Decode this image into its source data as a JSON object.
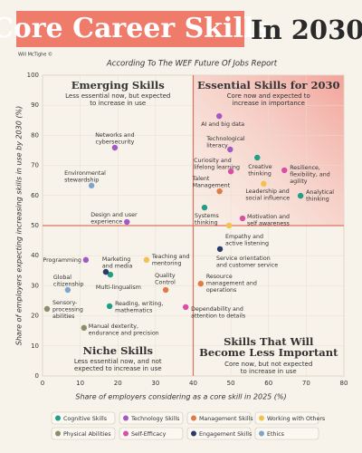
{
  "title": "Core Career Skills",
  "title_suffix": "In 2030",
  "credit": "Will McTighe ©",
  "subtitle": "According To The WEF Future Of Jobs Report",
  "chart_data": {
    "type": "scatter",
    "x_label": "Share of employers considering as a core skill in 2025 (%)",
    "y_label": "Share of employers expecting increasing skills in use by 2030 (%)",
    "xlim": [
      0,
      80
    ],
    "ylim": [
      0,
      100
    ],
    "xticks": [
      0,
      10,
      20,
      30,
      40,
      50,
      60,
      70,
      80
    ],
    "yticks": [
      0,
      10,
      20,
      30,
      40,
      50,
      60,
      70,
      80,
      90,
      100
    ],
    "dividers": {
      "x": 40,
      "y": 50
    },
    "quadrants": [
      {
        "title": "Emerging Skills",
        "description": [
          "Less essential now, but expected",
          "to increase in use"
        ]
      },
      {
        "title": "Essential Skills for 2030",
        "description": [
          "Core now and expected to",
          "increase in importance"
        ]
      },
      {
        "title": "Niche Skills",
        "description": [
          "Less essential now, and not",
          "expected to increase in use"
        ]
      },
      {
        "title": "Skills That Will Become Less Important",
        "description": [
          "Core now, but not expected",
          "to increase in use"
        ]
      }
    ],
    "series": [
      {
        "name": "Cognitive Skills",
        "color": "#1f9e89",
        "x": [
          57,
          68.5,
          43,
          17.8,
          18
        ],
        "values": [
          72.6,
          59.9,
          56,
          23.2,
          33.7
        ],
        "labels": [
          [
            "Creative",
            "thinking"
          ],
          [
            "Analytical",
            "thinking"
          ],
          [
            "Systems",
            "thinking"
          ],
          [
            "Reading, writing,",
            "mathematics"
          ],
          [
            "Multi-lingualism"
          ]
        ]
      },
      {
        "name": "Technology Skills",
        "color": "#a259c4",
        "x": [
          46.9,
          49.8,
          19.2,
          22.4,
          11.5
        ],
        "values": [
          86.4,
          75.3,
          75.9,
          51.2,
          38.6
        ],
        "labels": [
          [
            "AI and big data"
          ],
          [
            "Technological",
            "literacy"
          ],
          [
            "Networks and",
            "cybersecurity"
          ],
          [
            "Design and user",
            "experience"
          ],
          [
            "Programming"
          ]
        ]
      },
      {
        "name": "Management Skills",
        "color": "#e07b48",
        "x": [
          47,
          42,
          32.7
        ],
        "values": [
          61.4,
          30.7,
          28.6
        ],
        "labels": [
          [
            "Talent",
            "Management"
          ],
          [
            "Resource",
            "management and",
            "operations"
          ],
          [
            "Quality",
            "Control"
          ]
        ]
      },
      {
        "name": "Working with Others",
        "color": "#f2c14e",
        "x": [
          58.7,
          49.5,
          27.6
        ],
        "values": [
          63.9,
          50,
          38.6
        ],
        "labels": [
          [
            "Leadership and",
            "social influence"
          ],
          [
            "Empathy and",
            "active listening"
          ],
          [
            "Teaching and",
            "mentoring"
          ]
        ]
      },
      {
        "name": "Physical Abilities",
        "color": "#8a8f6a",
        "x": [
          1.2,
          11
        ],
        "values": [
          22.3,
          16
        ],
        "labels": [
          [
            "Sensory-",
            "processing",
            "abilities"
          ],
          [
            "Manual dexterity,",
            "endurance and precision"
          ]
        ]
      },
      {
        "name": "Self-Efficacy",
        "color": "#d94fa6",
        "x": [
          64.2,
          50,
          53.1,
          38
        ],
        "values": [
          68.4,
          68,
          52.4,
          22.9
        ],
        "labels": [
          [
            "Resilience,",
            "flexibility, and",
            "agility"
          ],
          [
            "Curiosity and",
            "lifelong learning"
          ],
          [
            "Motivation and",
            "self awareness"
          ],
          [
            "Dependability and",
            "attention to details"
          ]
        ]
      },
      {
        "name": "Engagement Skills",
        "color": "#2b3a67",
        "x": [
          47.1,
          16.8
        ],
        "values": [
          42.2,
          34.6
        ],
        "labels": [
          [
            "Service orientation",
            "and customer service"
          ],
          [
            "Marketing",
            "and media"
          ]
        ]
      },
      {
        "name": "Ethics",
        "color": "#7ea6c9",
        "x": [
          13,
          6.7
        ],
        "values": [
          63.3,
          28.6
        ],
        "labels": [
          [
            "Environmental",
            "stewardship"
          ],
          [
            "Global",
            "citizenship"
          ]
        ]
      }
    ]
  }
}
